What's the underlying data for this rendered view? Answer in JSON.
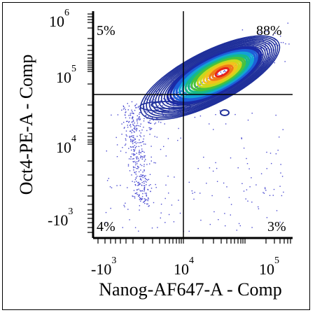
{
  "chart_data": {
    "type": "scatter",
    "subtype": "flow-cytometry-contour-density",
    "xlabel": "Nanog-AF647-A - Comp",
    "ylabel": "Oct4-PE-A - Comp",
    "x_scale": "biexponential",
    "y_scale": "biexponential",
    "x_ticks": [
      {
        "base": "-10",
        "exp": "3",
        "value": -1000
      },
      {
        "base": "10",
        "exp": "4",
        "value": 10000
      },
      {
        "base": "10",
        "exp": "5",
        "value": 100000
      }
    ],
    "y_ticks": [
      {
        "base": "10",
        "exp": "6",
        "value": 1000000
      },
      {
        "base": "10",
        "exp": "5",
        "value": 100000
      },
      {
        "base": "10",
        "exp": "4",
        "value": 10000
      },
      {
        "base": "-10",
        "exp": "3",
        "value": -1000
      }
    ],
    "quadrants": {
      "upper_left": "5%",
      "upper_right": "88%",
      "lower_left": "4%",
      "lower_right": "3%"
    },
    "gates": {
      "x": 8800,
      "y": 50000
    },
    "population_peak": {
      "x": 25000,
      "y": 100000
    },
    "colors": {
      "contour": "#1f2f9a",
      "density": [
        "#1b2aa6",
        "#1d5fd8",
        "#12a3d6",
        "#16b98a",
        "#49c23c",
        "#c9d81c",
        "#f2c21c",
        "#f07a18",
        "#e8231b"
      ],
      "dots": "#4a4ad0"
    },
    "grid": false,
    "legend": "none"
  }
}
